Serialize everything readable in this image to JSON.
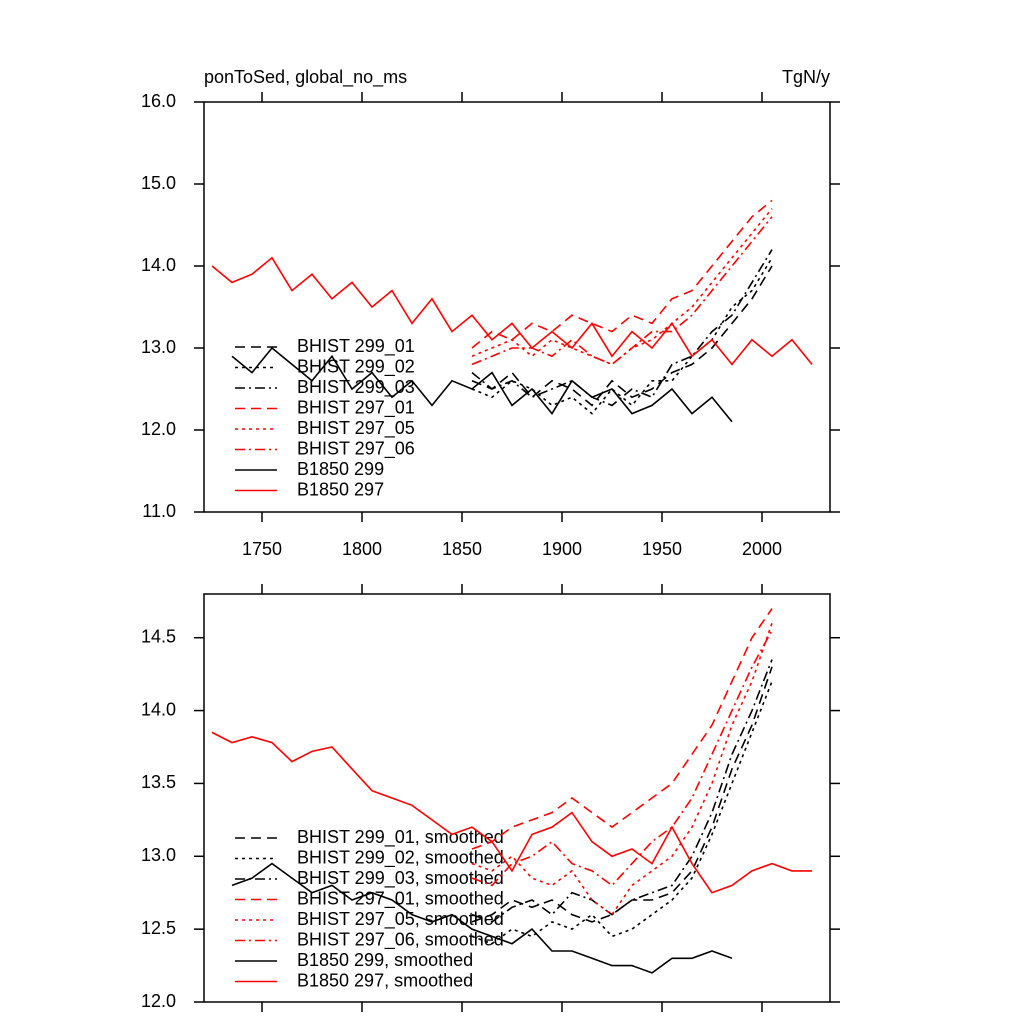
{
  "chart_data": [
    {
      "type": "line",
      "title": "ponToSed, global_no_ms",
      "units": "TgN/y",
      "x": [
        1725,
        1735,
        1745,
        1755,
        1765,
        1775,
        1785,
        1795,
        1805,
        1815,
        1825,
        1835,
        1845,
        1855,
        1865,
        1875,
        1885,
        1895,
        1905,
        1915,
        1925,
        1935,
        1945,
        1955,
        1965,
        1975,
        1985,
        1995,
        2005,
        2015,
        2025
      ],
      "xlim": [
        1721,
        2034
      ],
      "xticks": [
        1750,
        1800,
        1850,
        1900,
        1950,
        2000
      ],
      "show_xtick_labels": true,
      "ylim": [
        11,
        16
      ],
      "yticks": [
        {
          "value": 11,
          "label": "11.0"
        },
        {
          "value": 12,
          "label": "12.0"
        },
        {
          "value": 13,
          "label": "13.0"
        },
        {
          "value": 14,
          "label": "14.0"
        },
        {
          "value": 15,
          "label": "15.0"
        },
        {
          "value": 16,
          "label": "16.0"
        }
      ],
      "series": [
        {
          "name": "BHIST 299_01",
          "color": "#000000",
          "dash": "dashed",
          "values": [
            null,
            null,
            null,
            null,
            null,
            null,
            null,
            null,
            null,
            null,
            null,
            null,
            null,
            12.6,
            12.5,
            12.7,
            12.4,
            12.6,
            12.5,
            12.3,
            12.6,
            12.4,
            12.5,
            12.7,
            12.8,
            13.0,
            13.3,
            13.6,
            14.0,
            null,
            null
          ]
        },
        {
          "name": "BHIST 299_02",
          "color": "#000000",
          "dash": "dotted",
          "values": [
            null,
            null,
            null,
            null,
            null,
            null,
            null,
            null,
            null,
            null,
            null,
            null,
            null,
            12.5,
            12.4,
            12.6,
            12.5,
            12.3,
            12.4,
            12.2,
            12.5,
            12.3,
            12.6,
            12.6,
            12.9,
            13.1,
            13.5,
            13.7,
            14.1,
            null,
            null
          ]
        },
        {
          "name": "BHIST 299_03",
          "color": "#000000",
          "dash": "dashdot",
          "values": [
            null,
            null,
            null,
            null,
            null,
            null,
            null,
            null,
            null,
            null,
            null,
            null,
            null,
            12.7,
            12.5,
            12.6,
            12.4,
            12.5,
            12.6,
            12.4,
            12.3,
            12.5,
            12.4,
            12.8,
            12.9,
            13.2,
            13.4,
            13.8,
            14.2,
            null,
            null
          ]
        },
        {
          "name": "BHIST 297_01",
          "color": "#ff0000",
          "dash": "dashed",
          "values": [
            null,
            null,
            null,
            null,
            null,
            null,
            null,
            null,
            null,
            null,
            null,
            null,
            null,
            13.0,
            13.2,
            13.1,
            13.3,
            13.2,
            13.4,
            13.3,
            13.2,
            13.4,
            13.3,
            13.6,
            13.7,
            14.0,
            14.3,
            14.6,
            14.8,
            null,
            null
          ]
        },
        {
          "name": "BHIST 297_05",
          "color": "#ff0000",
          "dash": "dotted",
          "values": [
            null,
            null,
            null,
            null,
            null,
            null,
            null,
            null,
            null,
            null,
            null,
            null,
            null,
            12.9,
            13.0,
            13.1,
            12.9,
            13.1,
            13.0,
            12.9,
            12.8,
            13.0,
            13.1,
            13.3,
            13.5,
            13.8,
            14.1,
            14.4,
            14.7,
            null,
            null
          ]
        },
        {
          "name": "BHIST 297_06",
          "color": "#ff0000",
          "dash": "dashdot",
          "values": [
            null,
            null,
            null,
            null,
            null,
            null,
            null,
            null,
            null,
            null,
            null,
            null,
            null,
            12.8,
            12.9,
            13.0,
            13.0,
            12.9,
            13.1,
            12.9,
            12.8,
            13.0,
            13.2,
            13.2,
            13.4,
            13.7,
            14.0,
            14.3,
            14.6,
            null,
            null
          ]
        },
        {
          "name": "B1850 299",
          "color": "#000000",
          "dash": "solid",
          "values": [
            null,
            12.9,
            12.7,
            13.0,
            12.8,
            12.6,
            12.9,
            12.5,
            12.7,
            12.4,
            12.6,
            12.3,
            12.6,
            12.5,
            12.7,
            12.3,
            12.5,
            12.2,
            12.6,
            12.4,
            12.5,
            12.2,
            12.3,
            12.5,
            12.2,
            12.4,
            12.1,
            null,
            null,
            null,
            null
          ]
        },
        {
          "name": "B1850 297",
          "color": "#ff0000",
          "dash": "solid",
          "values": [
            14.0,
            13.8,
            13.9,
            14.1,
            13.7,
            13.9,
            13.6,
            13.8,
            13.5,
            13.7,
            13.3,
            13.6,
            13.2,
            13.4,
            13.1,
            13.3,
            13.0,
            13.2,
            13.0,
            13.3,
            12.9,
            13.2,
            13.0,
            13.3,
            12.9,
            13.1,
            12.8,
            13.1,
            12.9,
            13.1,
            12.8
          ]
        }
      ]
    },
    {
      "type": "line",
      "x": [
        1725,
        1735,
        1745,
        1755,
        1765,
        1775,
        1785,
        1795,
        1805,
        1815,
        1825,
        1835,
        1845,
        1855,
        1865,
        1875,
        1885,
        1895,
        1905,
        1915,
        1925,
        1935,
        1945,
        1955,
        1965,
        1975,
        1985,
        1995,
        2005,
        2015,
        2025
      ],
      "xlim": [
        1721,
        2034
      ],
      "xticks": [
        1750,
        1800,
        1850,
        1900,
        1950,
        2000
      ],
      "show_xtick_labels": false,
      "ylim": [
        12,
        14.8
      ],
      "yticks": [
        {
          "value": 12,
          "label": "12.0"
        },
        {
          "value": 12.5,
          "label": "12.5"
        },
        {
          "value": 13,
          "label": "13.0"
        },
        {
          "value": 13.5,
          "label": "13.5"
        },
        {
          "value": 14,
          "label": "14.0"
        },
        {
          "value": 14.5,
          "label": "14.5"
        }
      ],
      "series": [
        {
          "name": "BHIST 299_01, smoothed",
          "color": "#000000",
          "dash": "dashed",
          "values": [
            null,
            null,
            null,
            null,
            null,
            null,
            null,
            null,
            null,
            null,
            null,
            null,
            null,
            12.55,
            12.6,
            12.7,
            12.65,
            12.7,
            12.6,
            12.55,
            12.6,
            12.7,
            12.7,
            12.75,
            12.9,
            13.2,
            13.6,
            13.9,
            14.3,
            null,
            null
          ]
        },
        {
          "name": "BHIST 299_02, smoothed",
          "color": "#000000",
          "dash": "dotted",
          "values": [
            null,
            null,
            null,
            null,
            null,
            null,
            null,
            null,
            null,
            null,
            null,
            null,
            null,
            12.45,
            12.4,
            12.5,
            12.45,
            12.55,
            12.5,
            12.6,
            12.45,
            12.5,
            12.6,
            12.7,
            12.85,
            13.15,
            13.5,
            13.85,
            14.2,
            null,
            null
          ]
        },
        {
          "name": "BHIST 299_03, smoothed",
          "color": "#000000",
          "dash": "dashdot",
          "values": [
            null,
            null,
            null,
            null,
            null,
            null,
            null,
            null,
            null,
            null,
            null,
            null,
            null,
            12.6,
            12.55,
            12.65,
            12.7,
            12.6,
            12.75,
            12.7,
            12.6,
            12.7,
            12.75,
            12.8,
            13.0,
            13.3,
            13.7,
            14.0,
            14.35,
            null,
            null
          ]
        },
        {
          "name": "BHIST 297_01, smoothed",
          "color": "#ff0000",
          "dash": "dashed",
          "values": [
            null,
            null,
            null,
            null,
            null,
            null,
            null,
            null,
            null,
            null,
            null,
            null,
            null,
            13.05,
            13.1,
            13.2,
            13.25,
            13.3,
            13.4,
            13.3,
            13.2,
            13.3,
            13.4,
            13.5,
            13.7,
            13.9,
            14.2,
            14.5,
            14.7,
            null,
            null
          ]
        },
        {
          "name": "BHIST 297_05, smoothed",
          "color": "#ff0000",
          "dash": "dotted",
          "values": [
            null,
            null,
            null,
            null,
            null,
            null,
            null,
            null,
            null,
            null,
            null,
            null,
            null,
            12.95,
            12.9,
            13.0,
            12.85,
            12.8,
            12.9,
            12.7,
            12.6,
            12.8,
            12.9,
            13.0,
            13.2,
            13.5,
            13.9,
            14.2,
            14.6,
            null,
            null
          ]
        },
        {
          "name": "BHIST 297_06, smoothed",
          "color": "#ff0000",
          "dash": "dashdot",
          "values": [
            null,
            null,
            null,
            null,
            null,
            null,
            null,
            null,
            null,
            null,
            null,
            null,
            null,
            12.85,
            12.8,
            12.95,
            13.0,
            13.1,
            12.95,
            12.9,
            12.8,
            12.95,
            13.1,
            13.2,
            13.4,
            13.7,
            14.0,
            14.3,
            14.55,
            null,
            null
          ]
        },
        {
          "name": "B1850 299, smoothed",
          "color": "#000000",
          "dash": "solid",
          "values": [
            null,
            12.8,
            12.85,
            12.95,
            12.85,
            12.75,
            12.8,
            12.7,
            12.75,
            12.7,
            12.6,
            12.55,
            12.6,
            12.5,
            12.45,
            12.4,
            12.5,
            12.35,
            12.35,
            12.3,
            12.25,
            12.25,
            12.2,
            12.3,
            12.3,
            12.35,
            12.3,
            null,
            null,
            null,
            null
          ]
        },
        {
          "name": "B1850 297, smoothed",
          "color": "#ff0000",
          "dash": "solid",
          "values": [
            13.85,
            13.78,
            13.82,
            13.78,
            13.65,
            13.72,
            13.75,
            13.6,
            13.45,
            13.4,
            13.35,
            13.25,
            13.15,
            13.2,
            13.1,
            12.9,
            13.15,
            13.2,
            13.3,
            13.1,
            13.0,
            13.05,
            12.95,
            13.2,
            12.95,
            12.75,
            12.8,
            12.9,
            12.95,
            12.9,
            12.9
          ]
        }
      ]
    }
  ]
}
